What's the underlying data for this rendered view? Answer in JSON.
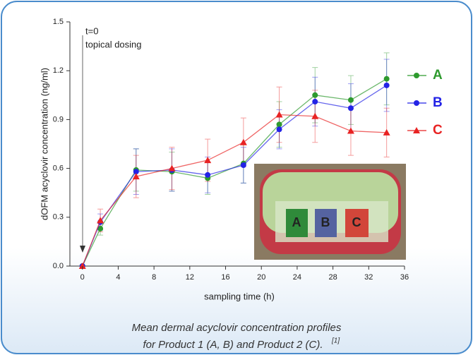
{
  "chart_data": {
    "type": "line",
    "categories_note": null,
    "xlabel": "sampling time (h)",
    "ylabel": "dOFM acyclovir concentration (ng/ml)",
    "x": [
      0,
      2,
      6,
      10,
      14,
      18,
      22,
      26,
      30,
      34
    ],
    "series": [
      {
        "name": "A",
        "color": "#2e9a2e",
        "marker": "circle",
        "values": [
          0.0,
          0.23,
          0.59,
          0.58,
          0.54,
          0.63,
          0.87,
          1.05,
          1.02,
          1.15
        ],
        "errors": [
          0,
          0.04,
          0.13,
          0.12,
          0.1,
          0.12,
          0.14,
          0.17,
          0.15,
          0.16
        ]
      },
      {
        "name": "B",
        "color": "#2323e6",
        "marker": "circle",
        "values": [
          0.0,
          0.27,
          0.58,
          0.59,
          0.56,
          0.62,
          0.84,
          1.01,
          0.97,
          1.11
        ],
        "errors": [
          0,
          0.05,
          0.14,
          0.13,
          0.11,
          0.11,
          0.12,
          0.15,
          0.15,
          0.16
        ]
      },
      {
        "name": "C",
        "color": "#e82323",
        "marker": "triangle",
        "values": [
          0.0,
          0.28,
          0.55,
          0.6,
          0.65,
          0.76,
          0.93,
          0.92,
          0.83,
          0.82
        ],
        "errors": [
          0,
          0.07,
          0.13,
          0.13,
          0.13,
          0.15,
          0.17,
          0.16,
          0.15,
          0.15
        ]
      }
    ],
    "xlim": [
      -1.4,
      36
    ],
    "ylim": [
      0,
      1.5
    ],
    "xticks": [
      0,
      4,
      8,
      12,
      16,
      20,
      24,
      28,
      32,
      36
    ],
    "yticks": [
      {
        "value": 0,
        "label": "0.0"
      },
      0.3,
      0.6,
      0.9,
      1.2,
      1.5
    ],
    "annotations": [
      "t=0",
      "topical dosing"
    ],
    "inset_labels": [
      "A",
      "B",
      "C"
    ],
    "caption": [
      "Mean dermal acyclovir concentration profiles",
      "for Product 1 (A, B) and Product 2 (C).",
      "[1]"
    ]
  }
}
